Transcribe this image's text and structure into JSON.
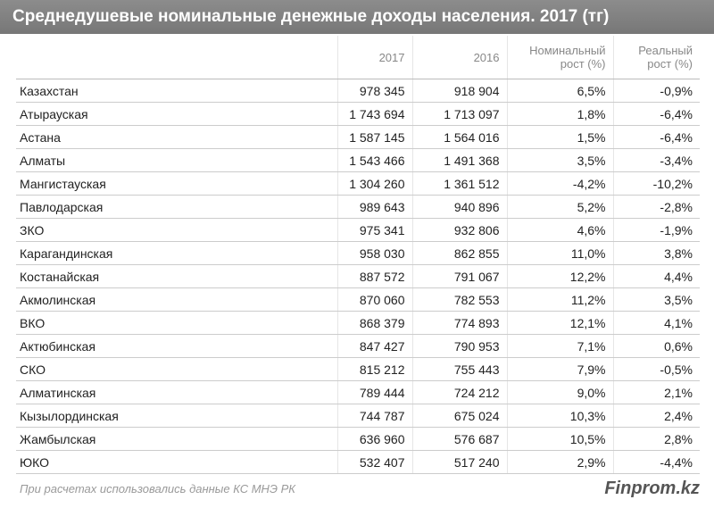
{
  "header": {
    "title": "Среднедушевые номинальные денежные доходы населения. 2017 (тг)"
  },
  "table": {
    "columns": [
      "",
      "2017",
      "2016",
      "Номинальный рост (%)",
      "Реальный рост (%)"
    ],
    "rows": [
      [
        "Казахстан",
        "978 345",
        "918 904",
        "6,5%",
        "-0,9%"
      ],
      [
        "Атырауская",
        "1 743 694",
        "1 713 097",
        "1,8%",
        "-6,4%"
      ],
      [
        "Астана",
        "1 587 145",
        "1 564 016",
        "1,5%",
        "-6,4%"
      ],
      [
        "Алматы",
        "1 543 466",
        "1 491 368",
        "3,5%",
        "-3,4%"
      ],
      [
        "Мангистауская",
        "1 304 260",
        "1 361 512",
        "-4,2%",
        "-10,2%"
      ],
      [
        "Павлодарская",
        "989 643",
        "940 896",
        "5,2%",
        "-2,8%"
      ],
      [
        "ЗКО",
        "975 341",
        "932 806",
        "4,6%",
        "-1,9%"
      ],
      [
        "Карагандинская",
        "958 030",
        "862 855",
        "11,0%",
        "3,8%"
      ],
      [
        "Костанайская",
        "887 572",
        "791 067",
        "12,2%",
        "4,4%"
      ],
      [
        "Акмолинская",
        "870 060",
        "782 553",
        "11,2%",
        "3,5%"
      ],
      [
        "ВКО",
        "868 379",
        "774 893",
        "12,1%",
        "4,1%"
      ],
      [
        "Актюбинская",
        "847 427",
        "790 953",
        "7,1%",
        "0,6%"
      ],
      [
        "СКО",
        "815 212",
        "755 443",
        "7,9%",
        "-0,5%"
      ],
      [
        "Алматинская",
        "789 444",
        "724 212",
        "9,0%",
        "2,1%"
      ],
      [
        "Кызылординская",
        "744 787",
        "675 024",
        "10,3%",
        "2,4%"
      ],
      [
        "Жамбылская",
        "636 960",
        "576 687",
        "10,5%",
        "2,8%"
      ],
      [
        "ЮКО",
        "532 407",
        "517 240",
        "2,9%",
        "-4,4%"
      ]
    ]
  },
  "footer": {
    "note": "При расчетах использовались данные КС МНЭ РК",
    "brand": "Finprom.kz"
  }
}
